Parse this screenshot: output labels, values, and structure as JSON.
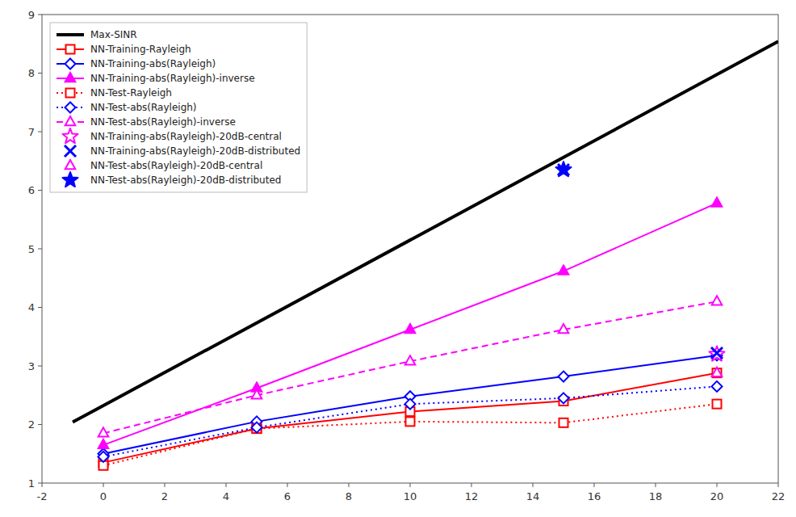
{
  "chart_data": {
    "type": "line",
    "xlim": [
      -2,
      22
    ],
    "ylim": [
      1,
      9
    ],
    "xticks": [
      -2,
      0,
      2,
      4,
      6,
      8,
      10,
      12,
      14,
      16,
      18,
      20,
      22
    ],
    "yticks": [
      1,
      2,
      3,
      4,
      5,
      6,
      7,
      8,
      9
    ],
    "grid": false,
    "legend": "upper-left",
    "series": [
      {
        "name": "Max-SINR",
        "color": "#000000",
        "line_style": "solid",
        "marker": "none",
        "x": [
          -1,
          22
        ],
        "values": [
          2.04,
          8.54
        ]
      },
      {
        "name": "NN-Training-Rayleigh",
        "color": "#FF0000",
        "line_style": "solid",
        "marker": "square",
        "x": [
          0,
          5,
          10,
          15,
          20
        ],
        "values": [
          1.35,
          1.93,
          2.22,
          2.4,
          2.88
        ]
      },
      {
        "name": "NN-Training-abs(Rayleigh)",
        "color": "#0000FF",
        "line_style": "solid",
        "marker": "diamond",
        "x": [
          0,
          5,
          10,
          15,
          20
        ],
        "values": [
          1.5,
          2.05,
          2.48,
          2.82,
          3.18
        ]
      },
      {
        "name": "NN-Training-abs(Rayleigh)-inverse",
        "color": "#FF00FF",
        "line_style": "solid",
        "marker": "triangle-filled",
        "x": [
          0,
          5,
          10,
          15,
          20
        ],
        "values": [
          1.65,
          2.62,
          3.62,
          4.62,
          5.78
        ]
      },
      {
        "name": "NN-Test-Rayleigh",
        "color": "#FF0000",
        "line_style": "dotted",
        "marker": "square",
        "x": [
          0,
          5,
          10,
          15,
          20
        ],
        "values": [
          1.3,
          1.93,
          2.05,
          2.03,
          2.35
        ]
      },
      {
        "name": "NN-Test-abs(Rayleigh)",
        "color": "#0000FF",
        "line_style": "dotted",
        "marker": "diamond",
        "x": [
          0,
          5,
          10,
          15,
          20
        ],
        "values": [
          1.45,
          1.95,
          2.35,
          2.45,
          2.65
        ]
      },
      {
        "name": "NN-Test-abs(Rayleigh)-inverse",
        "color": "#FF00FF",
        "line_style": "dashed",
        "marker": "triangle",
        "x": [
          0,
          5,
          10,
          15,
          20
        ],
        "values": [
          1.85,
          2.5,
          3.08,
          3.62,
          4.1
        ]
      },
      {
        "name": "NN-Training-abs(Rayleigh)-20dB-central",
        "color": "#FF00FF",
        "line_style": "none",
        "marker": "star",
        "x": [
          20
        ],
        "values": [
          3.2
        ]
      },
      {
        "name": "NN-Training-abs(Rayleigh)-20dB-distributed",
        "color": "#0000FF",
        "line_style": "none",
        "marker": "x",
        "x": [
          20
        ],
        "values": [
          3.22
        ]
      },
      {
        "name": "NN-Test-abs(Rayleigh)-20dB-central",
        "color": "#FF00FF",
        "line_style": "none",
        "marker": "triangle",
        "x": [
          20
        ],
        "values": [
          2.88
        ]
      },
      {
        "name": "NN-Test-abs(Rayleigh)-20dB-distributed",
        "color": "#0000FF",
        "line_style": "none",
        "marker": "star-filled",
        "x": [
          15
        ],
        "values": [
          6.35
        ]
      },
      {
        "color": "#0000FF",
        "line_style": "none",
        "marker": "x",
        "x": [
          15
        ],
        "values": [
          6.35
        ]
      }
    ]
  }
}
